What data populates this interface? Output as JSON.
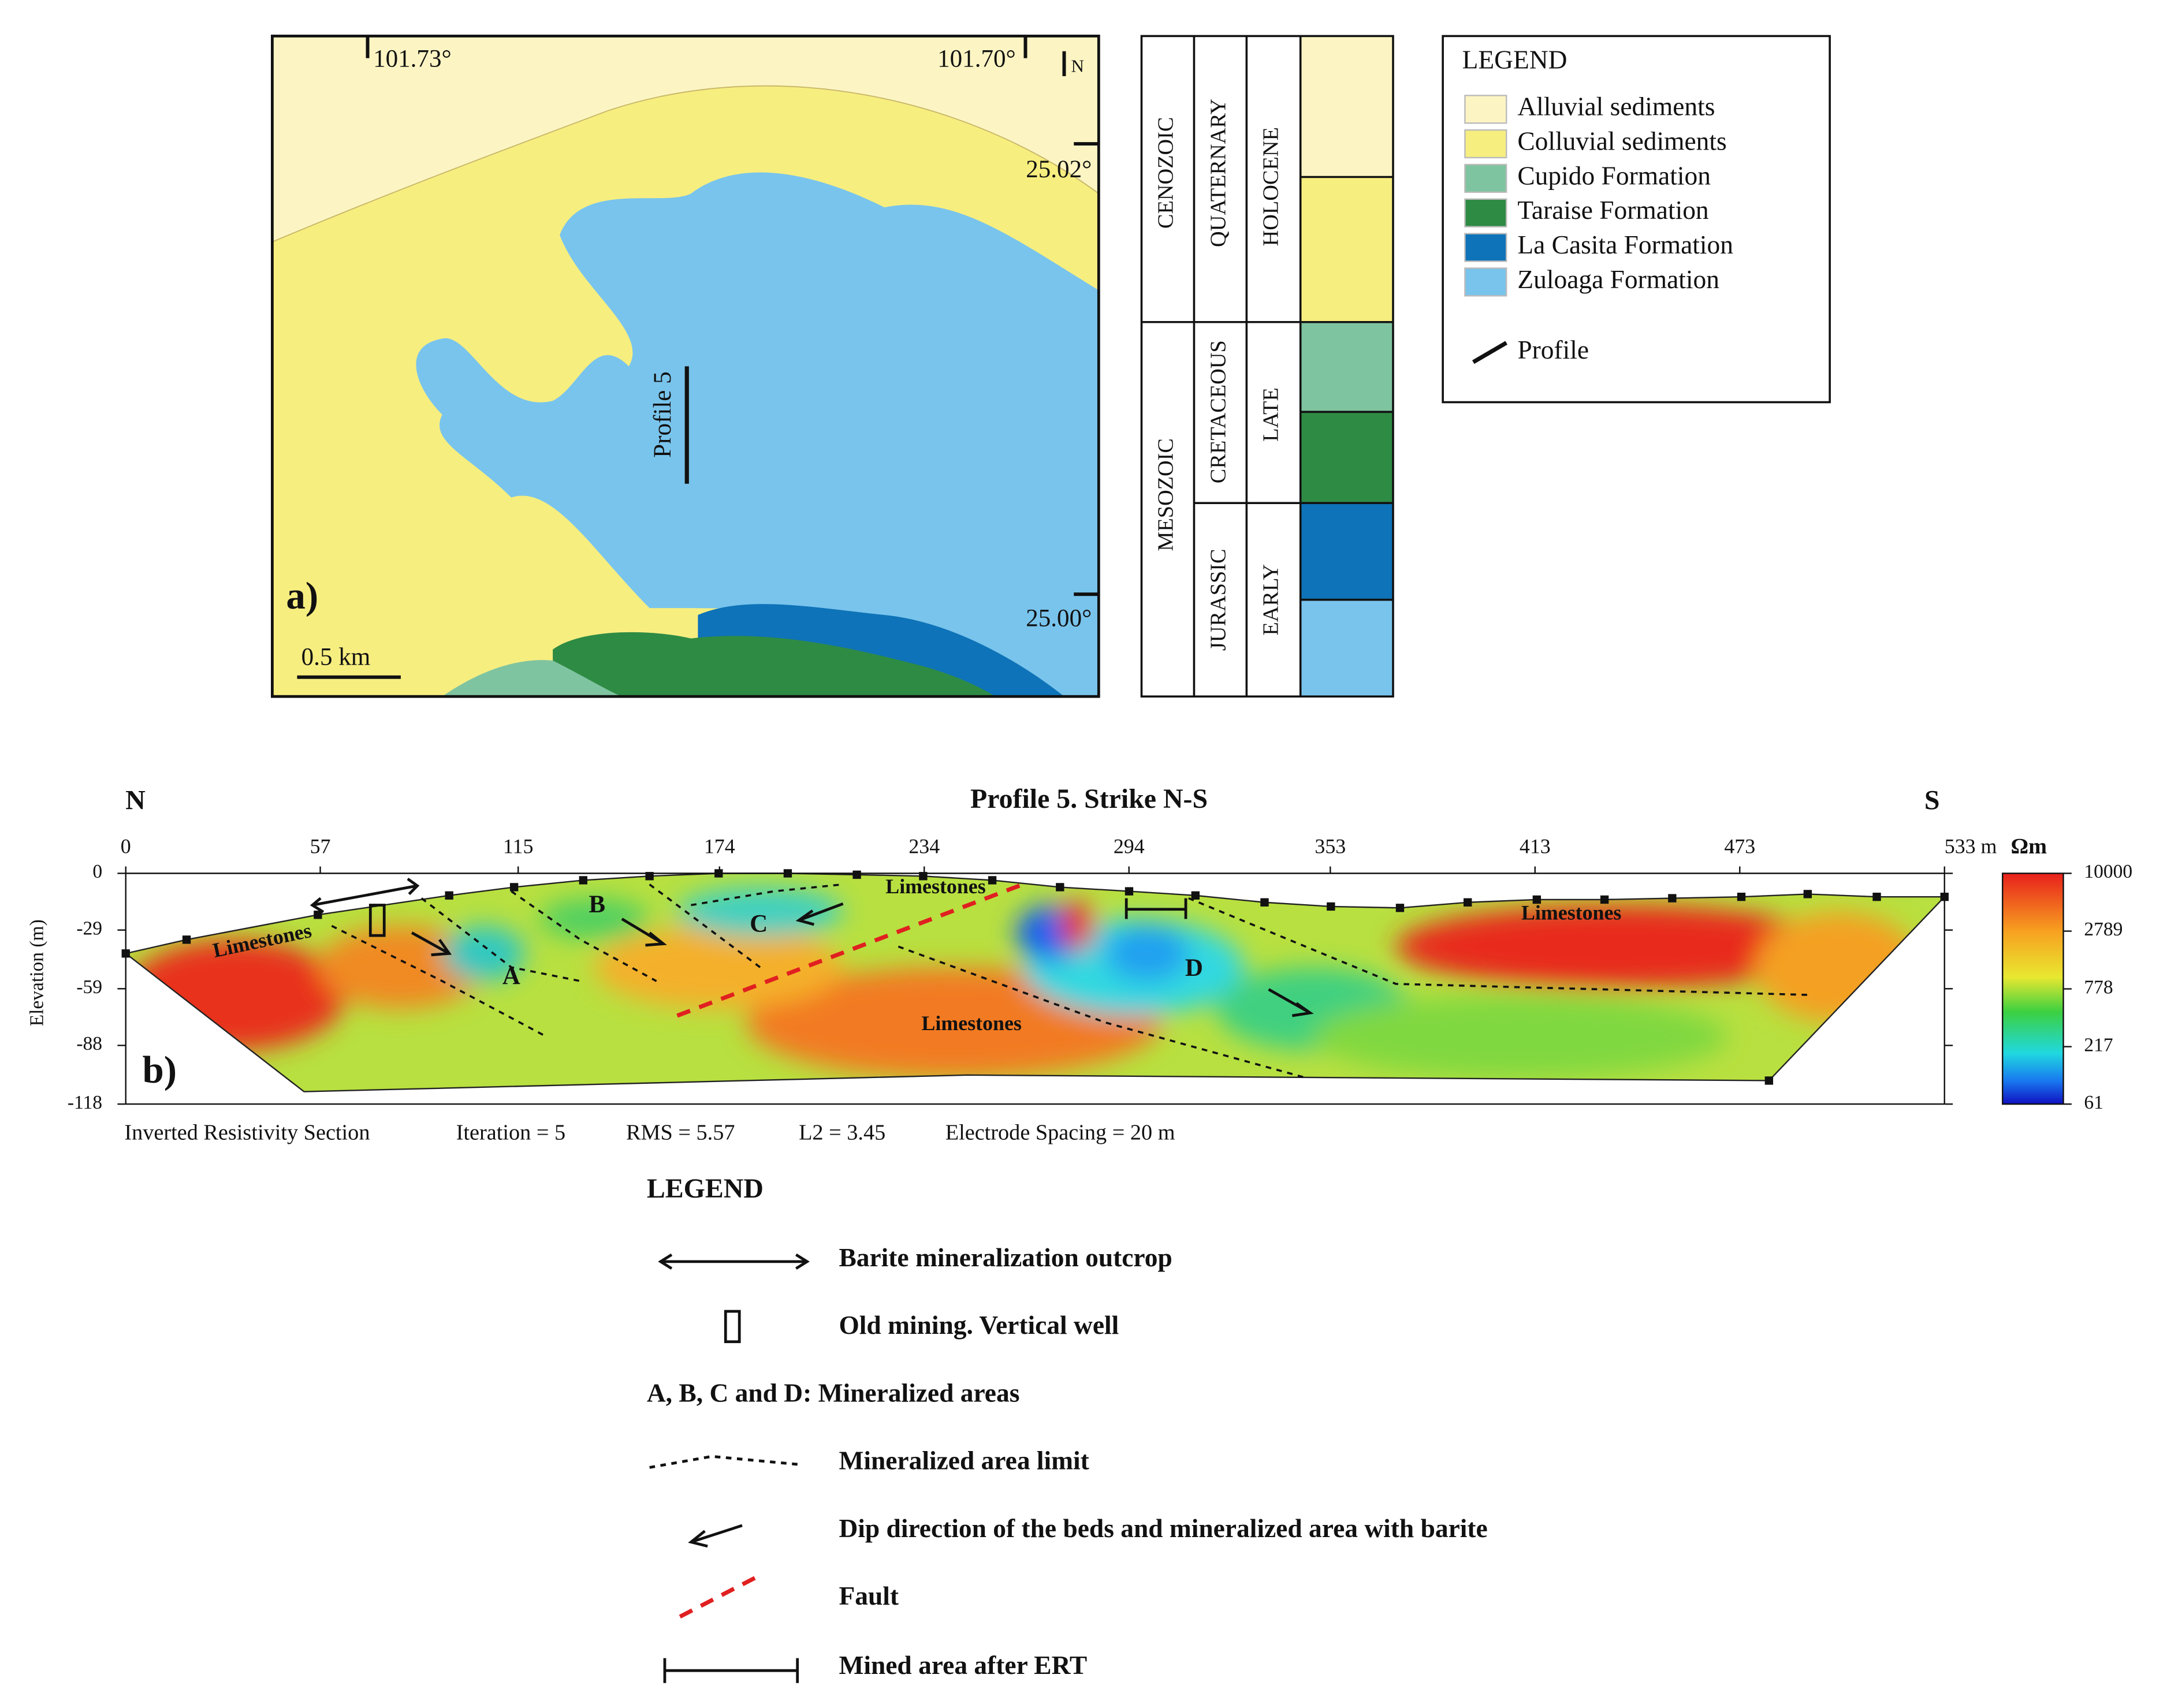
{
  "map": {
    "panel_label": "a)",
    "lon_labels": [
      "101.73°",
      "101.70°"
    ],
    "lat_labels": [
      "25.02°",
      "25.00°"
    ],
    "north": "N",
    "scale_bar": "0.5 km",
    "profile_label": "Profile 5"
  },
  "column": {
    "eras": [
      "CENOZOIC",
      "MESOZOIC"
    ],
    "periods": [
      "QUATERNARY",
      "CRETACEOUS",
      "JURASSIC"
    ],
    "epochs": [
      "HOLOCENE",
      "LATE",
      "EARLY"
    ]
  },
  "legend_a": {
    "title": "LEGEND",
    "items": [
      "Alluvial sediments",
      "Colluvial sediments",
      "Cupido Formation",
      "Taraise Formation",
      "La Casita Formation",
      "Zuloaga Formation"
    ],
    "profile": "Profile"
  },
  "section": {
    "panel_label": "b)",
    "title": "Profile 5. Strike N-S",
    "north": "N",
    "south": "S",
    "y_axis_label": "Elevation (m)",
    "xlim": [
      0,
      533
    ],
    "xticks": [
      0,
      57,
      115,
      174,
      234,
      294,
      353,
      413,
      473,
      {
        "value": 533,
        "label": "533 m"
      }
    ],
    "ylim": [
      -118,
      0
    ],
    "yticks": [
      0,
      -29,
      -59,
      -88,
      -118
    ],
    "colorbar": {
      "unit": "Ωm",
      "ticks": [
        10000,
        2789,
        778,
        217,
        61
      ]
    },
    "annotations": [
      "Limestones",
      "Limestones",
      "Limestones",
      "Limestones",
      "A",
      "B",
      "C",
      "D"
    ],
    "footer": [
      "Inverted Resistivity Section",
      "Iteration = 5",
      "RMS = 5.57",
      "L2 = 3.45",
      "Electrode Spacing = 20 m"
    ]
  },
  "legend_b": {
    "title": "LEGEND",
    "items": [
      "Barite mineralization outcrop",
      "Old mining. Vertical well",
      "A, B, C and D: Mineralized areas",
      "Mineralized area limit",
      "Dip direction of the beds and mineralized area with barite",
      "Fault",
      "Mined area after ERT"
    ]
  }
}
